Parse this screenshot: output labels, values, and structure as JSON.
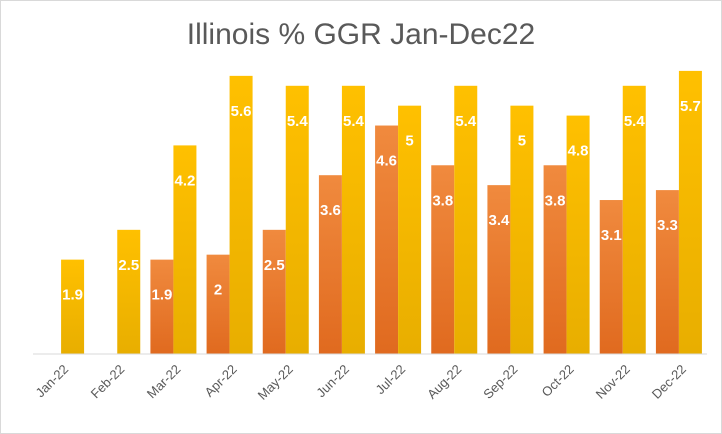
{
  "chart_data": {
    "type": "bar",
    "title": "Illinois % GGR Jan-Dec22",
    "categories": [
      "Jan-22",
      "Feb-22",
      "Mar-22",
      "Apr-22",
      "May-22",
      "Jun-22",
      "Jul-22",
      "Aug-22",
      "Sep-22",
      "Oct-22",
      "Nov-22",
      "Dec-22"
    ],
    "series": [
      {
        "values": [
          0,
          0,
          1.9,
          2,
          2.5,
          3.6,
          4.6,
          3.8,
          3.4,
          3.8,
          3.1,
          3.3
        ],
        "color": "#ED7D31"
      },
      {
        "values": [
          1.9,
          2.5,
          4.2,
          5.6,
          5.4,
          5.4,
          5,
          5.4,
          5,
          4.8,
          5.4,
          5.7
        ],
        "color": "#FFC000"
      }
    ],
    "ylim": [
      0,
      6
    ],
    "grid": false,
    "legend": "none",
    "data_labels": true
  }
}
